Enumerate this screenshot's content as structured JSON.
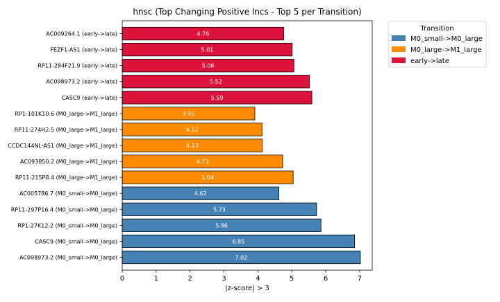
{
  "chart_data": {
    "type": "bar",
    "orientation": "horizontal",
    "title": "hnsc (Top Changing Positive lncs - Top 5 per Transition)",
    "xlabel": "|z-score| > 3",
    "ylabel": "",
    "xlim": [
      0,
      7.37
    ],
    "xticks": [
      "0",
      "1",
      "2",
      "3",
      "4",
      "5",
      "6",
      "7"
    ],
    "grid": false,
    "legend": {
      "title": "Transition",
      "placement": "outside-top-right",
      "entries": [
        {
          "label": "M0_small->M0_large",
          "color": "#4682b4"
        },
        {
          "label": "M0_large->M1_large",
          "color": "#ff8c00"
        },
        {
          "label": "early->late",
          "color": "#dc143c"
        }
      ]
    },
    "bars": [
      {
        "label": "AC009264.1 (early->late)",
        "value": 4.76,
        "value_label": "4.76",
        "series": 2
      },
      {
        "label": "FEZF1-AS1 (early->late)",
        "value": 5.01,
        "value_label": "5.01",
        "series": 2
      },
      {
        "label": "RP11-284F21.9 (early->late)",
        "value": 5.06,
        "value_label": "5.06",
        "series": 2
      },
      {
        "label": "AC098973.2 (early->late)",
        "value": 5.52,
        "value_label": "5.52",
        "series": 2
      },
      {
        "label": "CASC9 (early->late)",
        "value": 5.59,
        "value_label": "5.59",
        "series": 2
      },
      {
        "label": "RP1-101K10.6 (M0_large->M1_large)",
        "value": 3.91,
        "value_label": "3.91",
        "series": 1
      },
      {
        "label": "RP11-274H2.5 (M0_large->M1_large)",
        "value": 4.12,
        "value_label": "4.12",
        "series": 1
      },
      {
        "label": "CCDC144NL-AS1 (M0_large->M1_large)",
        "value": 4.13,
        "value_label": "4.13",
        "series": 1
      },
      {
        "label": "AC093850.2 (M0_large->M1_large)",
        "value": 4.73,
        "value_label": "4.73",
        "series": 1
      },
      {
        "label": "RP11-215P8.4 (M0_large->M1_large)",
        "value": 5.04,
        "value_label": "5.04",
        "series": 1
      },
      {
        "label": "AC005786.7 (M0_small->M0_large)",
        "value": 4.62,
        "value_label": "4.62",
        "series": 0
      },
      {
        "label": "RP11-297P16.4 (M0_small->M0_large)",
        "value": 5.73,
        "value_label": "5.73",
        "series": 0
      },
      {
        "label": "RP1-27K12.2 (M0_small->M0_large)",
        "value": 5.86,
        "value_label": "5.86",
        "series": 0
      },
      {
        "label": "CASC9 (M0_small->M0_large)",
        "value": 6.85,
        "value_label": "6.85",
        "series": 0
      },
      {
        "label": "AC098973.2 (M0_small->M0_large)",
        "value": 7.02,
        "value_label": "7.02",
        "series": 0
      }
    ]
  }
}
